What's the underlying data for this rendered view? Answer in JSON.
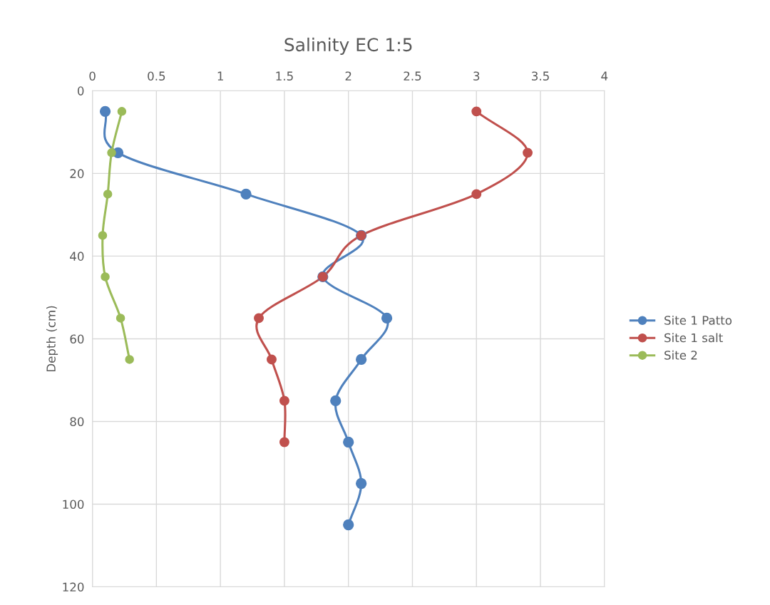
{
  "chart_data": {
    "type": "line",
    "title": "Salinity EC 1:5",
    "ylabel": "Depth (cm)",
    "xlim": [
      0,
      4
    ],
    "xticks": [
      0,
      0.5,
      1,
      1.5,
      2,
      2.5,
      3,
      3.5,
      4
    ],
    "ylim": [
      120,
      0
    ],
    "yticks": [
      0,
      20,
      40,
      60,
      80,
      100,
      120
    ],
    "grid": true,
    "legend": "right",
    "marker": "circle",
    "line_style": "solid",
    "series": [
      {
        "name": "Site 1 Patto",
        "color": "#4f81bd",
        "x": [
          0.1,
          0.2,
          1.2,
          2.1,
          1.8,
          2.3,
          2.1,
          1.9,
          2.0,
          2.1,
          2.0
        ],
        "values": [
          5,
          15,
          25,
          35,
          45,
          55,
          65,
          75,
          85,
          95,
          105
        ]
      },
      {
        "name": "Site 1 salt",
        "color": "#c0504d",
        "x": [
          3.0,
          3.4,
          3.0,
          2.1,
          1.8,
          1.3,
          1.4,
          1.5,
          1.5
        ],
        "values": [
          5,
          15,
          25,
          35,
          45,
          55,
          65,
          75,
          85
        ]
      },
      {
        "name": "Site 2",
        "color": "#9bbb59",
        "x": [
          0.23,
          0.15,
          0.12,
          0.08,
          0.1,
          0.22,
          0.29
        ],
        "values": [
          5,
          15,
          25,
          35,
          45,
          55,
          65
        ]
      }
    ]
  }
}
